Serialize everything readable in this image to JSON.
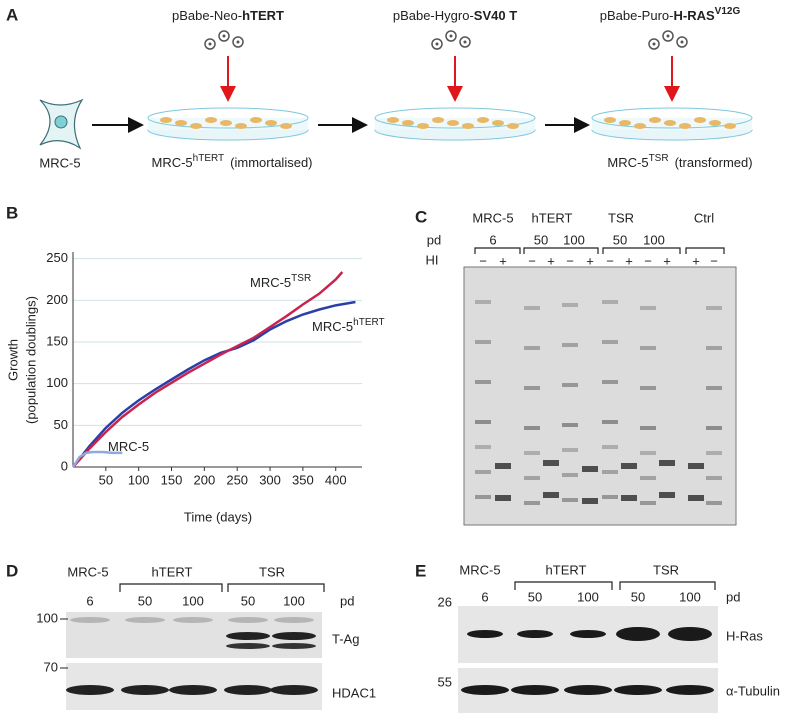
{
  "panel_a": {
    "letter": "A",
    "vectors": [
      {
        "prefix": "pBabe-Neo-",
        "bold": "hTERT"
      },
      {
        "prefix": "pBabe-Hygro-",
        "bold": "SV40 T"
      },
      {
        "prefix": "pBabe-Puro-",
        "bold": "H-RAS",
        "sup": "V12G"
      }
    ],
    "cells": [
      {
        "base": "MRC-5"
      },
      {
        "base": "MRC-5",
        "sup": "hTERT",
        "note": "(immortalised)"
      },
      {
        "base": "MRC-5",
        "sup": "TSR",
        "note": "(transformed)"
      }
    ]
  },
  "chart_data": {
    "type": "line",
    "letter": "B",
    "xlabel": "Time (days)",
    "ylabel": [
      "Growth",
      "(population doublings)"
    ],
    "xlim": [
      0,
      440
    ],
    "ylim": [
      0,
      258
    ],
    "xticks": [
      50,
      100,
      150,
      200,
      250,
      300,
      350,
      400
    ],
    "yticks": [
      0,
      50,
      100,
      150,
      200,
      250
    ],
    "grid": true,
    "series": [
      {
        "name": "MRC-5",
        "name_sup": "hTERT",
        "color": "#2b3fa8",
        "x": [
          0,
          25,
          50,
          75,
          100,
          125,
          150,
          175,
          200,
          225,
          250,
          275,
          300,
          325,
          350,
          375,
          400,
          430
        ],
        "values": [
          0,
          25,
          47,
          65,
          80,
          93,
          105,
          117,
          128,
          137,
          143,
          152,
          165,
          175,
          183,
          189,
          194,
          198
        ]
      },
      {
        "name": "MRC-5",
        "name_sup": "TSR",
        "color": "#c8244f",
        "x": [
          0,
          25,
          50,
          75,
          100,
          125,
          150,
          175,
          200,
          225,
          250,
          275,
          300,
          325,
          350,
          375,
          400,
          410
        ],
        "values": [
          0,
          22,
          42,
          60,
          75,
          89,
          101,
          113,
          124,
          135,
          145,
          155,
          168,
          181,
          195,
          208,
          225,
          234
        ]
      },
      {
        "name": "MRC-5",
        "color": "#8fa8e0",
        "x": [
          0,
          10,
          20,
          30,
          45,
          60,
          75
        ],
        "values": [
          0,
          12,
          17,
          18,
          18,
          17,
          17
        ]
      }
    ]
  },
  "panel_c": {
    "letter": "C",
    "groups": [
      "MRC-5",
      "hTERT",
      "TSR",
      "Ctrl"
    ],
    "pd_label": "pd",
    "pd": [
      "6",
      "50",
      "100",
      "50",
      "100"
    ],
    "hi_label": "HI",
    "hi": [
      "−",
      "+",
      "−",
      "+",
      "−",
      "+",
      "−",
      "+",
      "−",
      "+",
      "+",
      "−"
    ]
  },
  "panel_d": {
    "letter": "D",
    "groups": [
      "MRC-5",
      "hTERT",
      "TSR"
    ],
    "pd": [
      "6",
      "50",
      "100",
      "50",
      "100"
    ],
    "pd_label": "pd",
    "markers": [
      "100",
      "70"
    ],
    "bands": [
      "T-Ag",
      "HDAC1"
    ]
  },
  "panel_e": {
    "letter": "E",
    "groups": [
      "MRC-5",
      "hTERT",
      "TSR"
    ],
    "pd": [
      "6",
      "50",
      "100",
      "50",
      "100"
    ],
    "pd_label": "pd",
    "markers": [
      "26",
      "55"
    ],
    "bands": [
      "H-Ras",
      "α-Tubulin"
    ]
  }
}
